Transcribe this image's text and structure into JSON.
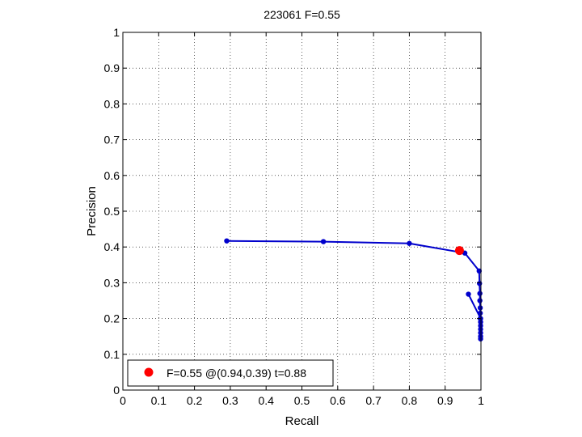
{
  "chart_data": {
    "type": "line",
    "title": "223061 F=0.55",
    "xlabel": "Recall",
    "ylabel": "Precision",
    "xlim": [
      0,
      1
    ],
    "ylim": [
      0,
      1
    ],
    "grid": true,
    "xticks": [
      "0",
      "0.1",
      "0.2",
      "0.3",
      "0.4",
      "0.5",
      "0.6",
      "0.7",
      "0.8",
      "0.9",
      "1"
    ],
    "yticks": [
      "0",
      "0.1",
      "0.2",
      "0.3",
      "0.4",
      "0.5",
      "0.6",
      "0.7",
      "0.8",
      "0.9",
      "1"
    ],
    "series_color": "#0000cc",
    "highlight_color": "#ff0000",
    "series": [
      {
        "points": [
          [
            0.29,
            0.417
          ],
          [
            0.56,
            0.415
          ],
          [
            0.8,
            0.41
          ],
          [
            0.955,
            0.383
          ],
          [
            0.995,
            0.333
          ],
          [
            0.996,
            0.298
          ],
          [
            0.997,
            0.27
          ],
          [
            0.997,
            0.25
          ],
          [
            0.998,
            0.23
          ],
          [
            0.998,
            0.215
          ],
          [
            0.998,
            0.2
          ],
          [
            0.999,
            0.19
          ],
          [
            0.999,
            0.18
          ],
          [
            0.999,
            0.17
          ],
          [
            0.999,
            0.16
          ],
          [
            0.999,
            0.15
          ],
          [
            0.999,
            0.143
          ]
        ]
      },
      {
        "points": [
          [
            0.965,
            0.268
          ],
          [
            0.999,
            0.2
          ]
        ]
      }
    ],
    "highlight": {
      "x": 0.94,
      "y": 0.39
    },
    "legend": {
      "text": "F=0.55 @(0.94,0.39) t=0.88",
      "position": "bottom-left"
    }
  }
}
